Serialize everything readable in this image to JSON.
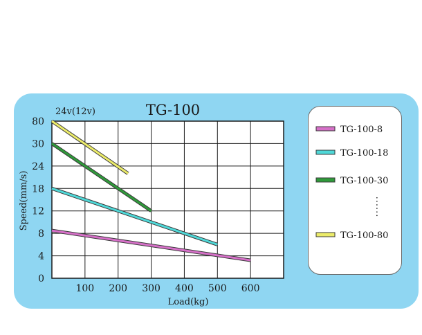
{
  "chart_data": {
    "type": "line",
    "title": "TG-100",
    "subtitle": "24v(12v)",
    "xlabel": "Load(kg)",
    "ylabel": "Speed(mm/s)",
    "x_ticks": [
      "100",
      "200",
      "300",
      "400",
      "500",
      "600"
    ],
    "y_ticks": [
      "0",
      "4",
      "8",
      "12",
      "18",
      "24",
      "30",
      "80"
    ],
    "xlim": [
      0,
      700
    ],
    "grid": true,
    "legend_position": "right",
    "legend_ellipsis": "......",
    "series": [
      {
        "name": "TG-100-8",
        "color": "#d670c8",
        "points": [
          [
            0,
            8.5
          ],
          [
            600,
            3.2
          ]
        ]
      },
      {
        "name": "TG-100-18",
        "color": "#4fd8d8",
        "points": [
          [
            0,
            18
          ],
          [
            500,
            6
          ]
        ]
      },
      {
        "name": "TG-100-30",
        "color": "#2f9a3a",
        "points": [
          [
            0,
            30
          ],
          [
            300,
            12
          ]
        ]
      },
      {
        "name": "TG-100-80",
        "color": "#ecec6a",
        "points": [
          [
            0,
            80
          ],
          [
            230,
            22
          ]
        ]
      }
    ]
  }
}
